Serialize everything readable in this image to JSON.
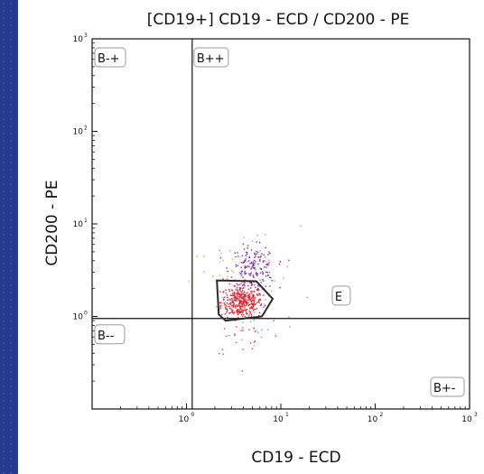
{
  "chart_data": {
    "type": "scatter",
    "title": "[CD19+] CD19 - ECD / CD200 - PE",
    "xlabel": "CD19 - ECD",
    "ylabel": "CD200 - PE",
    "xscale": "log",
    "yscale": "log",
    "xlim": [
      0.1,
      1000
    ],
    "ylim": [
      0.1,
      1000
    ],
    "x_ticks": [
      {
        "value": 1,
        "base": "10",
        "exp": "0"
      },
      {
        "value": 10,
        "base": "10",
        "exp": "1"
      },
      {
        "value": 100,
        "base": "10",
        "exp": "2"
      },
      {
        "value": 1000,
        "base": "10",
        "exp": "3"
      }
    ],
    "y_ticks": [
      {
        "value": 1,
        "base": "10",
        "exp": "0"
      },
      {
        "value": 10,
        "base": "10",
        "exp": "1"
      },
      {
        "value": 100,
        "base": "10",
        "exp": "2"
      },
      {
        "value": 1000,
        "base": "10",
        "exp": "3"
      }
    ],
    "quadrant_divider": {
      "x": 1.15,
      "y": 0.95
    },
    "quadrant_gates": [
      {
        "label": "B-+",
        "anchor": "top-left"
      },
      {
        "label": "B++",
        "anchor": "top-right-of-divider"
      },
      {
        "label": "B--",
        "anchor": "bottom-left"
      },
      {
        "label": "B+-",
        "anchor": "bottom-right"
      }
    ],
    "polygon_gate": {
      "label": "E",
      "label_at": {
        "x": 40,
        "y": 1.7
      },
      "vertices": [
        [
          2.1,
          2.45
        ],
        [
          5.5,
          2.4
        ],
        [
          8.2,
          1.55
        ],
        [
          6.3,
          1.0
        ],
        [
          2.6,
          0.9
        ],
        [
          2.2,
          1.05
        ]
      ]
    },
    "populations": [
      {
        "name": "",
        "color": "#e8202a",
        "count": 380,
        "center": [
          3.8,
          1.45
        ],
        "spread": [
          0.11,
          0.09
        ],
        "clip_to_gate": true
      },
      {
        "name": "",
        "color": "#7a2aa8",
        "count": 170,
        "center": [
          5.0,
          3.3
        ],
        "spread": [
          0.12,
          0.12
        ],
        "clip_to_gate": false
      },
      {
        "name": "",
        "color": "#e07ad0",
        "count": 25,
        "center": [
          5.0,
          3.0
        ],
        "spread": [
          0.25,
          0.25
        ],
        "clip_to_gate": false
      },
      {
        "name": "",
        "color": "#f0a030",
        "count": 20,
        "center": [
          3.0,
          2.8
        ],
        "spread": [
          0.22,
          0.18
        ],
        "clip_to_gate": false
      },
      {
        "name": "",
        "color": "#3fb0e8",
        "count": 22,
        "center": [
          4.5,
          1.0
        ],
        "spread": [
          0.25,
          0.25
        ],
        "clip_to_gate": false
      },
      {
        "name": "",
        "color": "#60c040",
        "count": 12,
        "center": [
          5.5,
          2.5
        ],
        "spread": [
          0.25,
          0.3
        ],
        "clip_to_gate": false
      },
      {
        "name": "",
        "color": "#ee3344",
        "count": 30,
        "center": [
          4.2,
          0.7
        ],
        "spread": [
          0.2,
          0.15
        ],
        "clip_to_gate": false
      }
    ]
  }
}
